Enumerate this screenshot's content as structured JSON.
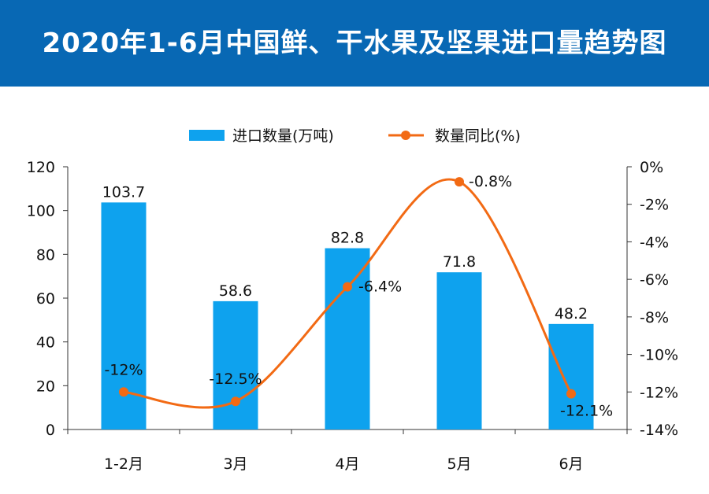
{
  "header": {
    "title": "2020年1-6月中国鲜、干水果及坚果进口量趋势图"
  },
  "colors": {
    "header_bg": "#0868b4",
    "bar": "#0ea2ee",
    "line": "#f26a14"
  },
  "chart_data": {
    "type": "bar+line",
    "categories": [
      "1-2月",
      "3月",
      "4月",
      "5月",
      "6月"
    ],
    "series": [
      {
        "name": "进口数量(万吨)",
        "type": "bar",
        "axis": "left",
        "values": [
          103.7,
          58.6,
          82.8,
          71.8,
          48.2
        ],
        "labels": [
          "103.7",
          "58.6",
          "82.8",
          "71.8",
          "48.2"
        ]
      },
      {
        "name": "数量同比(%)",
        "type": "line",
        "axis": "right",
        "smooth": true,
        "values": [
          -12,
          -12.5,
          -6.4,
          -0.8,
          -12.1
        ],
        "labels": [
          "-12%",
          "-12.5%",
          "-6.4%",
          "-0.8%",
          "-12.1%"
        ]
      }
    ],
    "y_left": {
      "min": 0,
      "max": 120,
      "ticks": [
        0,
        20,
        40,
        60,
        80,
        100,
        120
      ]
    },
    "y_right": {
      "min": -14,
      "max": 0,
      "ticks": [
        0,
        -2,
        -4,
        -6,
        -8,
        -10,
        -12,
        -14
      ],
      "tick_labels": [
        "0%",
        "-2%",
        "-4%",
        "-6%",
        "-8%",
        "-10%",
        "-12%",
        "-14%"
      ]
    },
    "legend": {
      "position": "top-center"
    },
    "grid": false
  }
}
